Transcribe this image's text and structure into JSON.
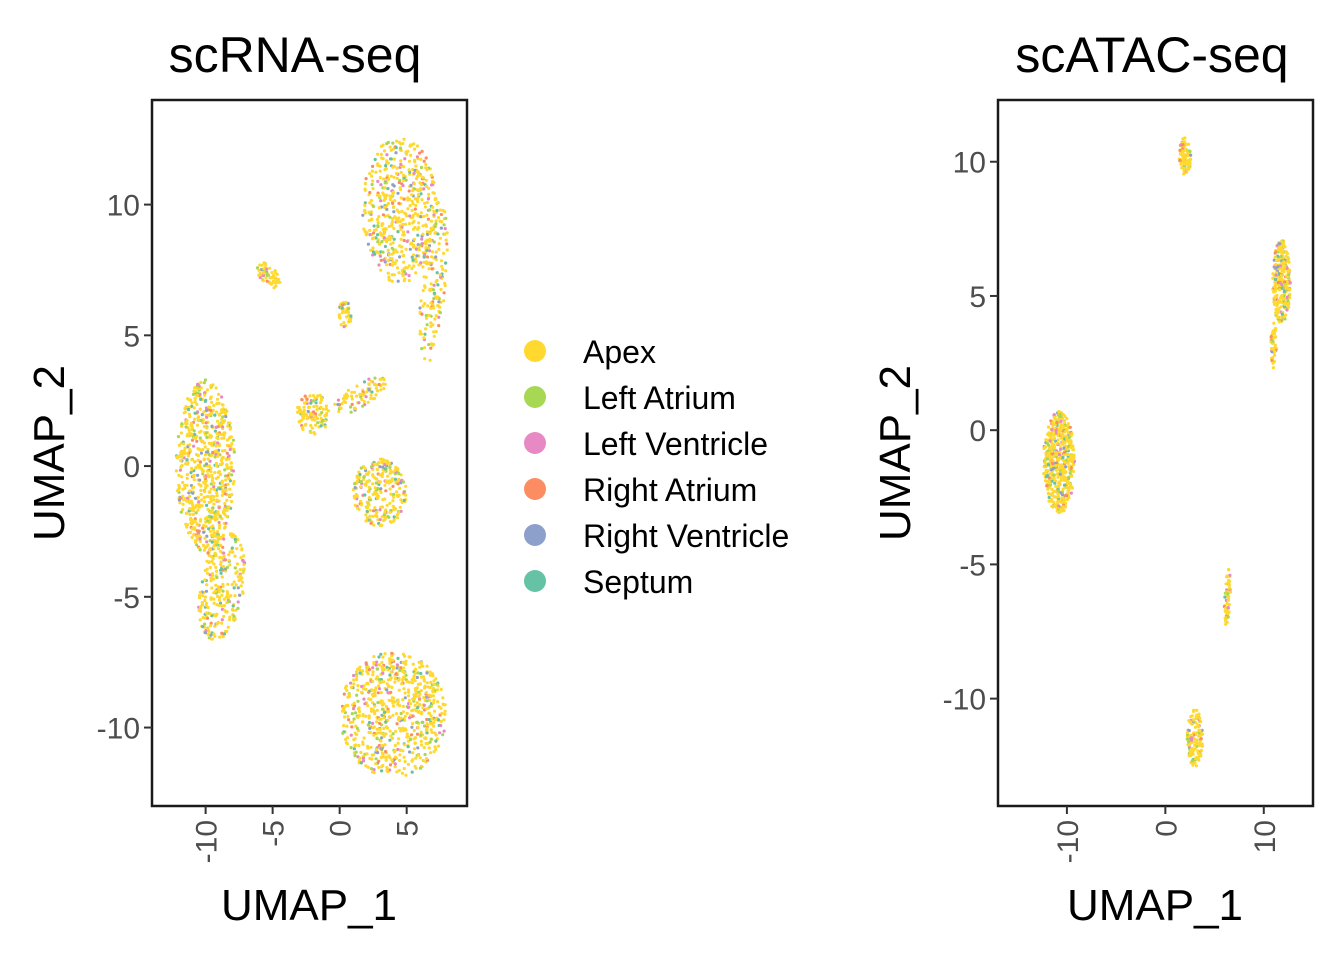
{
  "chart_data": [
    {
      "type": "scatter",
      "title": "scRNA-seq",
      "xlabel": "UMAP_1",
      "ylabel": "UMAP_2",
      "xlim": [
        -14,
        9.5
      ],
      "ylim": [
        -13,
        14
      ],
      "xticks": [
        -10,
        -5,
        0,
        5
      ],
      "xtick_labels": [
        "-10",
        "-5",
        "0",
        "5"
      ],
      "yticks": [
        -10,
        -5,
        0,
        5,
        10
      ],
      "ytick_labels": [
        "-10",
        "-5",
        "0",
        "5",
        "10"
      ],
      "grid": false,
      "clusters": [
        {
          "cx": -10.0,
          "cy": 0.0,
          "rx": 2.2,
          "ry": 3.3,
          "rot": 0,
          "n": 700
        },
        {
          "cx": -8.8,
          "cy": -4.6,
          "rx": 1.6,
          "ry": 2.2,
          "rot": -30,
          "n": 260
        },
        {
          "cx": 4.5,
          "cy": 9.8,
          "rx": 2.8,
          "ry": 2.8,
          "rot": -35,
          "n": 520
        },
        {
          "cx": 7.0,
          "cy": 7.0,
          "rx": 0.9,
          "ry": 3.2,
          "rot": -10,
          "n": 160
        },
        {
          "cx": 4.0,
          "cy": -9.5,
          "rx": 4.0,
          "ry": 2.4,
          "rot": 0,
          "n": 700
        },
        {
          "cx": 3.0,
          "cy": -1.0,
          "rx": 2.0,
          "ry": 1.3,
          "rot": 0,
          "n": 260
        },
        {
          "cx": -2.0,
          "cy": 2.0,
          "rx": 1.2,
          "ry": 0.8,
          "rot": 0,
          "n": 110
        },
        {
          "cx": 1.5,
          "cy": 2.7,
          "rx": 2.0,
          "ry": 0.5,
          "rot": 15,
          "n": 80
        },
        {
          "cx": -5.3,
          "cy": 7.3,
          "rx": 0.9,
          "ry": 0.4,
          "rot": -20,
          "n": 60
        },
        {
          "cx": 0.4,
          "cy": 5.8,
          "rx": 0.5,
          "ry": 0.5,
          "rot": 0,
          "n": 40
        }
      ]
    },
    {
      "type": "scatter",
      "title": "scATAC-seq",
      "xlabel": "UMAP_1",
      "ylabel": "UMAP_2",
      "xlim": [
        -17,
        15
      ],
      "ylim": [
        -14,
        12.3
      ],
      "xticks": [
        -10,
        0,
        10
      ],
      "xtick_labels": [
        "-10",
        "0",
        "10"
      ],
      "yticks": [
        -10,
        -5,
        0,
        5,
        10
      ],
      "ytick_labels": [
        "-10",
        "-5",
        "0",
        "5",
        "10"
      ],
      "grid": false,
      "clusters": [
        {
          "cx": -10.8,
          "cy": -1.2,
          "rx": 1.6,
          "ry": 1.9,
          "rot": 0,
          "n": 500
        },
        {
          "cx": 11.8,
          "cy": 5.5,
          "rx": 0.9,
          "ry": 1.6,
          "rot": 0,
          "n": 280
        },
        {
          "cx": 11.0,
          "cy": 3.2,
          "rx": 0.3,
          "ry": 0.9,
          "rot": 0,
          "n": 40
        },
        {
          "cx": 2.0,
          "cy": 10.2,
          "rx": 0.6,
          "ry": 0.7,
          "rot": 0,
          "n": 90
        },
        {
          "cx": 6.3,
          "cy": -6.2,
          "rx": 0.3,
          "ry": 1.1,
          "rot": -8,
          "n": 60
        },
        {
          "cx": 3.0,
          "cy": -11.5,
          "rx": 0.8,
          "ry": 1.1,
          "rot": 0,
          "n": 140
        }
      ]
    }
  ],
  "legend": {
    "placement": "center-between-panels",
    "items": [
      {
        "label": "Apex",
        "color": "#FFD92F"
      },
      {
        "label": "Left Atrium",
        "color": "#A6D854"
      },
      {
        "label": "Left Ventricle",
        "color": "#E78AC3"
      },
      {
        "label": "Right Atrium",
        "color": "#FC8D62"
      },
      {
        "label": "Right Ventricle",
        "color": "#8DA0CB"
      },
      {
        "label": "Septum",
        "color": "#66C2A5"
      }
    ]
  }
}
